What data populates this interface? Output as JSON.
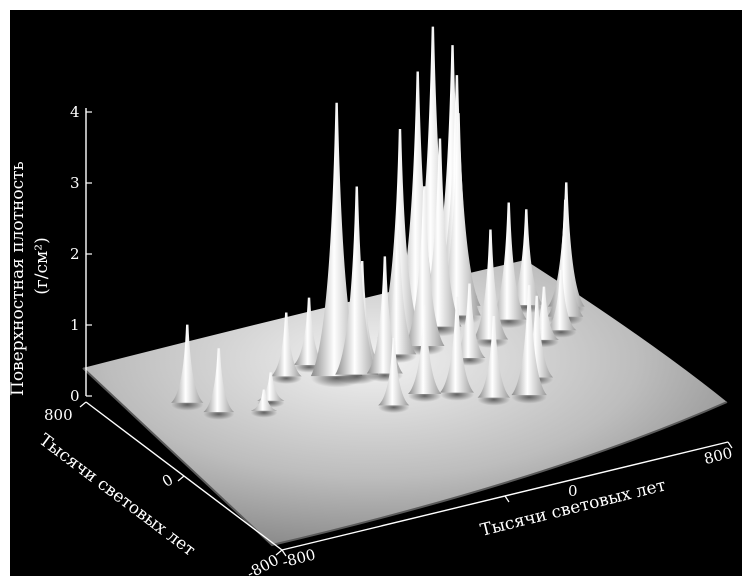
{
  "chart_data": {
    "type": "surface",
    "z_axis": {
      "label_line1": "Поверхностная плотность",
      "label_line2": "(г/см²)",
      "ticks": [
        "0",
        "1",
        "2",
        "3",
        "4"
      ],
      "range": [
        0,
        4
      ]
    },
    "y_axis": {
      "label": "Тысячи световых лет",
      "ticks": [
        "800",
        "0",
        "-800"
      ],
      "range": [
        -800,
        800
      ]
    },
    "x_axis": {
      "label": "Тысячи световых лет",
      "ticks": [
        "-800",
        "0",
        "800"
      ],
      "range": [
        -800,
        800
      ]
    },
    "base_surface_level": 0.35,
    "peaks": [
      {
        "x": -620,
        "y": 380,
        "z": 1.45
      },
      {
        "x": -560,
        "y": 250,
        "z": 1.25
      },
      {
        "x": -260,
        "y": 380,
        "z": 1.25
      },
      {
        "x": -160,
        "y": 420,
        "z": 1.3
      },
      {
        "x": -120,
        "y": 280,
        "z": 4.2
      },
      {
        "x": -60,
        "y": 250,
        "z": 3.0
      },
      {
        "x": -10,
        "y": 320,
        "z": 1.8
      },
      {
        "x": 20,
        "y": 200,
        "z": 2.0
      },
      {
        "x": 60,
        "y": -40,
        "z": 1.6
      },
      {
        "x": 120,
        "y": 320,
        "z": 2.1
      },
      {
        "x": 180,
        "y": 440,
        "z": 3.3
      },
      {
        "x": 220,
        "y": 330,
        "z": 2.6
      },
      {
        "x": 280,
        "y": 520,
        "z": 3.9
      },
      {
        "x": 330,
        "y": 450,
        "z": 3.0
      },
      {
        "x": 380,
        "y": 620,
        "z": 4.3
      },
      {
        "x": 420,
        "y": 500,
        "z": 3.2
      },
      {
        "x": 450,
        "y": 580,
        "z": 3.6
      },
      {
        "x": 470,
        "y": 660,
        "z": 3.9
      },
      {
        "x": 420,
        "y": 240,
        "z": 1.9
      },
      {
        "x": 300,
        "y": 140,
        "z": 1.4
      },
      {
        "x": 150,
        "y": -100,
        "z": 1.7
      },
      {
        "x": 230,
        "y": -220,
        "z": 1.5
      },
      {
        "x": 330,
        "y": -280,
        "z": 1.9
      },
      {
        "x": 410,
        "y": -160,
        "z": 1.5
      },
      {
        "x": 560,
        "y": 120,
        "z": 1.1
      },
      {
        "x": 640,
        "y": 160,
        "z": 1.2
      },
      {
        "x": 700,
        "y": 260,
        "z": 2.0
      },
      {
        "x": 740,
        "y": 340,
        "z": 2.1
      },
      {
        "x": 640,
        "y": 440,
        "z": 1.7
      },
      {
        "x": -60,
        "y": -60,
        "z": 1.3
      },
      {
        "x": -380,
        "y": 230,
        "z": 0.75
      },
      {
        "x": -430,
        "y": 170,
        "z": 0.65
      },
      {
        "x": 540,
        "y": 360,
        "z": 2.0
      }
    ]
  }
}
